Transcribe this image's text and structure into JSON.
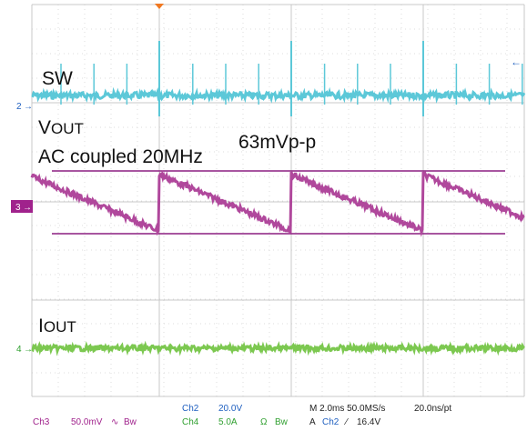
{
  "labels": {
    "sw": "SW",
    "vout": {
      "main": "V",
      "sub": "OUT"
    },
    "coupling": "AC coupled 20MHz",
    "ripple": "63mVp-p",
    "iout": {
      "main": "I",
      "sub": "OUT"
    }
  },
  "markers": [
    "2",
    "3",
    "4"
  ],
  "status": {
    "ch2": {
      "name": "Ch2",
      "scale": "20.0V"
    },
    "ch3": {
      "name": "Ch3",
      "scale": "50.0mV",
      "coupling": "∿",
      "bw": "Bw"
    },
    "ch4": {
      "name": "Ch4",
      "scale": "5.0A",
      "coupling": "Ω",
      "bw": "Bw"
    },
    "timebase": "M 2.0ms 50.0MS/s",
    "resolution": "20.0ns/pt",
    "trigger": {
      "mode": "A",
      "source": "Ch2",
      "level": "16.4V"
    }
  }
}
